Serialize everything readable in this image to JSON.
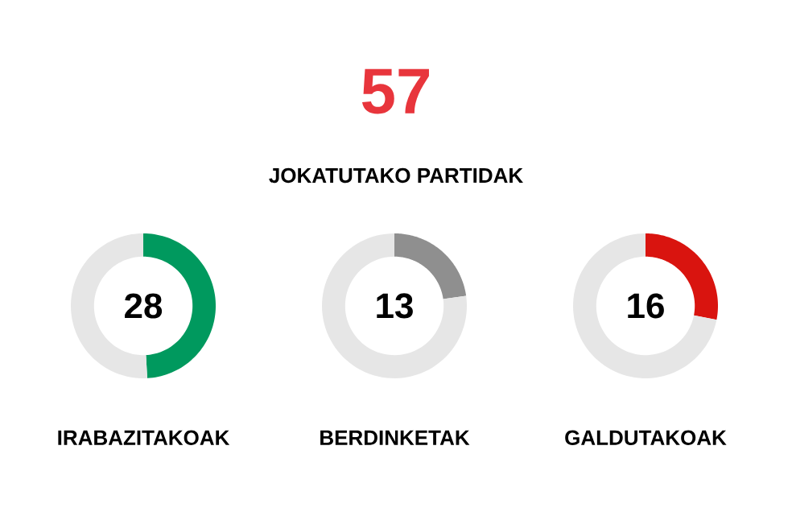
{
  "chart_data": [
    {
      "type": "other",
      "title": "57",
      "subtitle": "JOKATUTAKO PARTIDAK",
      "color": "#e8353c"
    },
    {
      "type": "donut",
      "categories": [
        null,
        null
      ],
      "values": [
        28,
        29
      ],
      "colors": [
        "#00995e",
        "#e6e6e6"
      ],
      "value_labels": [
        "28",
        null
      ],
      "xlabel": "IRABAZITAKOAK"
    },
    {
      "type": "donut",
      "categories": [
        null,
        null
      ],
      "values": [
        13,
        44
      ],
      "colors": [
        "#8f8f8f",
        "#e6e6e6"
      ],
      "value_labels": [
        "13",
        null
      ],
      "xlabel": "BERDINKETAK"
    },
    {
      "type": "donut",
      "categories": [
        null,
        null
      ],
      "values": [
        16,
        41
      ],
      "colors": [
        "#d9140f",
        "#e6e6e6"
      ],
      "value_labels": [
        "16",
        null
      ],
      "xlabel": "GALDUTAKOAK"
    }
  ]
}
